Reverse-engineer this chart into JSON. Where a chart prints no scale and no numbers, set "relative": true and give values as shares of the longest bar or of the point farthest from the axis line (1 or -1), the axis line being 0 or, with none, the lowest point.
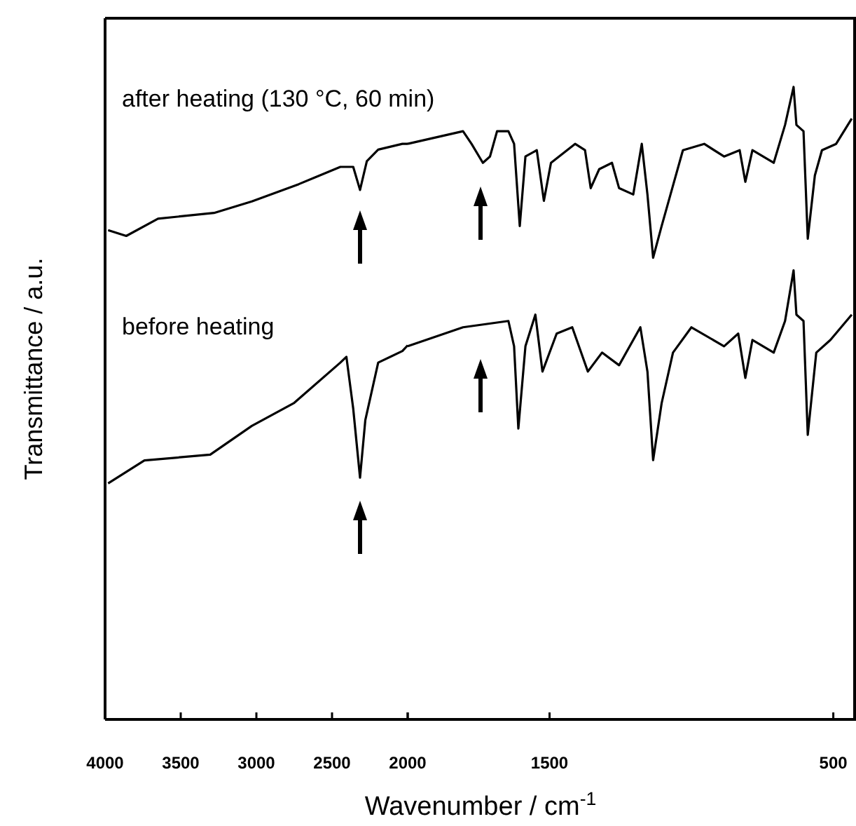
{
  "chart_data": [
    {
      "type": "line",
      "ylabel": "Transmittance / a.u.",
      "relative": true,
      "legend": false,
      "tick_labels": "x",
      "xlim": [
        4000,
        2000
      ],
      "xticks": [
        4000,
        3500,
        3000,
        2500,
        2000
      ],
      "series": [
        {
          "name": "after heating (130 °C, 60 min)",
          "color": "#000000",
          "x": [
            3980,
            3860,
            3650,
            3280,
            3030,
            2720,
            2445,
            2360,
            2315,
            2270,
            2195,
            2035,
            2000
          ],
          "values": [
            0.85,
            0.84,
            0.87,
            0.88,
            0.9,
            0.93,
            0.96,
            0.96,
            0.92,
            0.97,
            0.99,
            1.0,
            1.0
          ]
        },
        {
          "name": "before heating",
          "color": "#000000",
          "x": [
            3980,
            3740,
            3305,
            3030,
            2750,
            2445,
            2405,
            2360,
            2315,
            2280,
            2195,
            2035,
            2000
          ],
          "values": [
            0.41,
            0.45,
            0.46,
            0.51,
            0.55,
            0.62,
            0.63,
            0.54,
            0.42,
            0.52,
            0.62,
            0.64,
            0.65
          ]
        }
      ]
    },
    {
      "type": "line",
      "xlabel": "Wavenumber / cm$^{-1}$",
      "relative": true,
      "legend": false,
      "tick_labels": "x",
      "xlim": [
        2000,
        420
      ],
      "xticks": [
        {
          "value": 2000,
          "label": null
        },
        1500,
        500
      ],
      "series": [
        {
          "color": "#000000",
          "x": [
            2000,
            1805,
            1775,
            1735,
            1710,
            1685,
            1645,
            1625,
            1605,
            1585,
            1545,
            1520,
            1495,
            1410,
            1375,
            1355,
            1325,
            1280,
            1255,
            1205,
            1175,
            1155,
            1135,
            1105,
            1080,
            1030,
            955,
            885,
            830,
            810,
            785,
            710,
            670,
            640,
            630,
            605,
            590,
            565,
            540,
            490,
            435
          ],
          "values": [
            0.91,
            0.93,
            0.91,
            0.88,
            0.89,
            0.93,
            0.93,
            0.91,
            0.78,
            0.89,
            0.9,
            0.82,
            0.88,
            0.91,
            0.9,
            0.84,
            0.87,
            0.88,
            0.84,
            0.83,
            0.91,
            0.83,
            0.73,
            0.78,
            0.82,
            0.9,
            0.91,
            0.89,
            0.9,
            0.85,
            0.9,
            0.88,
            0.94,
            1.0,
            0.94,
            0.93,
            0.76,
            0.86,
            0.9,
            0.91,
            0.95
          ]
        },
        {
          "color": "#000000",
          "x": [
            2000,
            1805,
            1645,
            1625,
            1610,
            1585,
            1550,
            1525,
            1475,
            1420,
            1365,
            1315,
            1255,
            1180,
            1155,
            1135,
            1105,
            1065,
            1000,
            885,
            835,
            810,
            785,
            710,
            670,
            640,
            630,
            605,
            590,
            560,
            510,
            435
          ],
          "values": [
            0.59,
            0.62,
            0.63,
            0.59,
            0.46,
            0.59,
            0.64,
            0.55,
            0.61,
            0.62,
            0.55,
            0.58,
            0.56,
            0.62,
            0.55,
            0.41,
            0.5,
            0.58,
            0.62,
            0.59,
            0.61,
            0.54,
            0.6,
            0.58,
            0.63,
            0.71,
            0.64,
            0.63,
            0.45,
            0.58,
            0.6,
            0.64
          ]
        }
      ]
    }
  ]
}
